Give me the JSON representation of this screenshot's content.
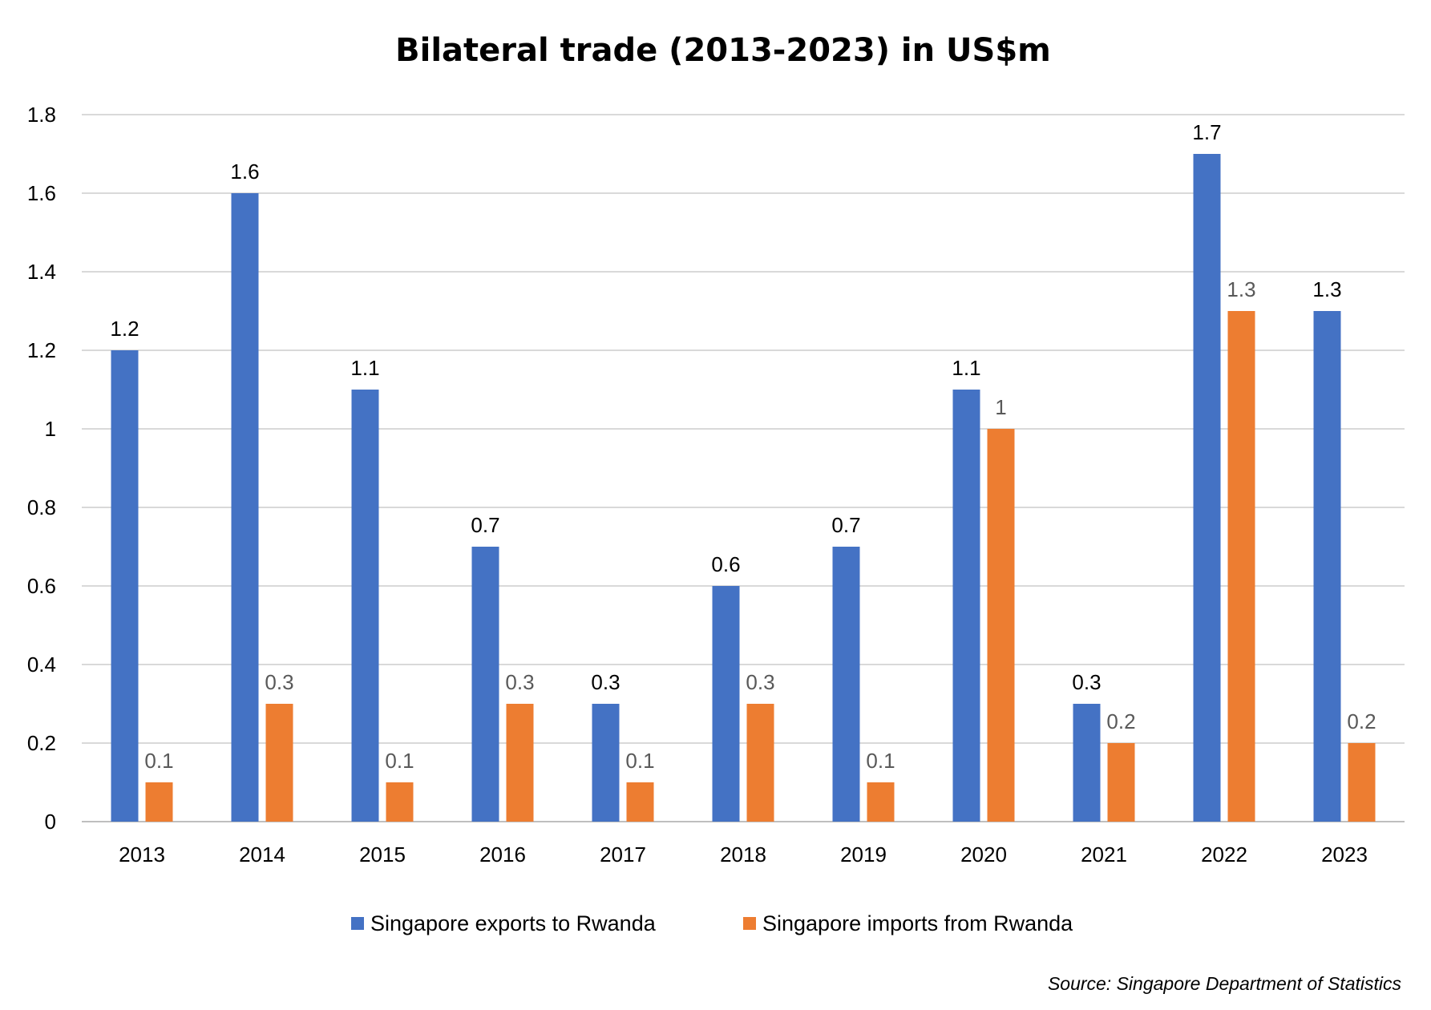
{
  "chart_data": {
    "type": "bar",
    "title": "Bilateral trade (2013-2023) in US$m",
    "categories": [
      "2013",
      "2014",
      "2015",
      "2016",
      "2017",
      "2018",
      "2019",
      "2020",
      "2021",
      "2022",
      "2023"
    ],
    "series": [
      {
        "name": "Singapore exports to Rwanda",
        "color": "#4472C4",
        "label_color": "#000000",
        "values": [
          1.2,
          1.6,
          1.1,
          0.7,
          0.3,
          0.6,
          0.7,
          1.1,
          0.3,
          1.7,
          1.3
        ]
      },
      {
        "name": "Singapore imports from Rwanda",
        "color": "#ED7D31",
        "label_color": "#595959",
        "values": [
          0.1,
          0.3,
          0.1,
          0.3,
          0.1,
          0.3,
          0.1,
          1,
          0.2,
          1.3,
          0.2
        ]
      }
    ],
    "ylim": [
      0,
      1.8
    ],
    "yticks": [
      "0",
      "0.2",
      "0.4",
      "0.6",
      "0.8",
      "1",
      "1.2",
      "1.4",
      "1.6",
      "1.8"
    ],
    "grid": true,
    "legend_position": "bottom",
    "xlabel": "",
    "ylabel": ""
  },
  "source_note": "Source:  Singapore Department of Statistics"
}
